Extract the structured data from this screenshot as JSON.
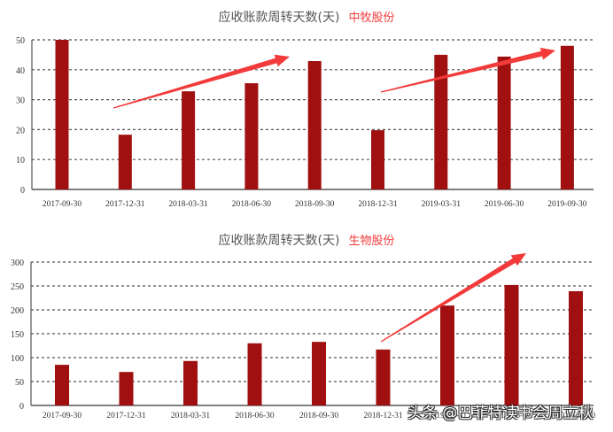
{
  "chart_data": [
    {
      "type": "bar",
      "title": "应收账款周转天数(天)",
      "company": "中牧股份",
      "categories": [
        "2017-09-30",
        "2017-12-31",
        "2018-03-31",
        "2018-06-30",
        "2018-09-30",
        "2018-12-31",
        "2019-03-31",
        "2019-06-30",
        "2019-09-30"
      ],
      "values": [
        50,
        18.3,
        32.8,
        35.5,
        42.9,
        19.8,
        45,
        44.4,
        48
      ],
      "yticks": [
        0,
        10,
        20,
        30,
        40,
        50
      ],
      "ylim": [
        0,
        50
      ],
      "grid": "dashed horizontal",
      "bar_color": "#a01010",
      "annotations": [
        "red upward arrow from 2017-12-31 to 2018-09-30",
        "red upward arrow from 2018-12-31 to 2019-09-30"
      ],
      "xlabel": "",
      "ylabel": ""
    },
    {
      "type": "bar",
      "title": "应收账款周转天数(天)",
      "company": "生物股份",
      "categories": [
        "2017-09-30",
        "2017-12-31",
        "2018-03-31",
        "2018-06-30",
        "2018-09-30",
        "2018-12-31",
        "2019-03-31",
        "2019-06-30",
        "2019-09-30"
      ],
      "values": [
        85,
        70,
        93,
        130,
        133,
        117,
        209,
        252,
        239
      ],
      "yticks": [
        0,
        50,
        100,
        150,
        200,
        250,
        300
      ],
      "ylim": [
        0,
        300
      ],
      "grid": "dashed horizontal",
      "bar_color": "#a01010",
      "annotations": [
        "red upward arrow from 2018-12-31 rising past 2019-06-30"
      ],
      "xlabel": "",
      "ylabel": ""
    }
  ],
  "watermark": "头条 @巴菲特读书会周立秋",
  "arrow_color": "#f23a3a"
}
